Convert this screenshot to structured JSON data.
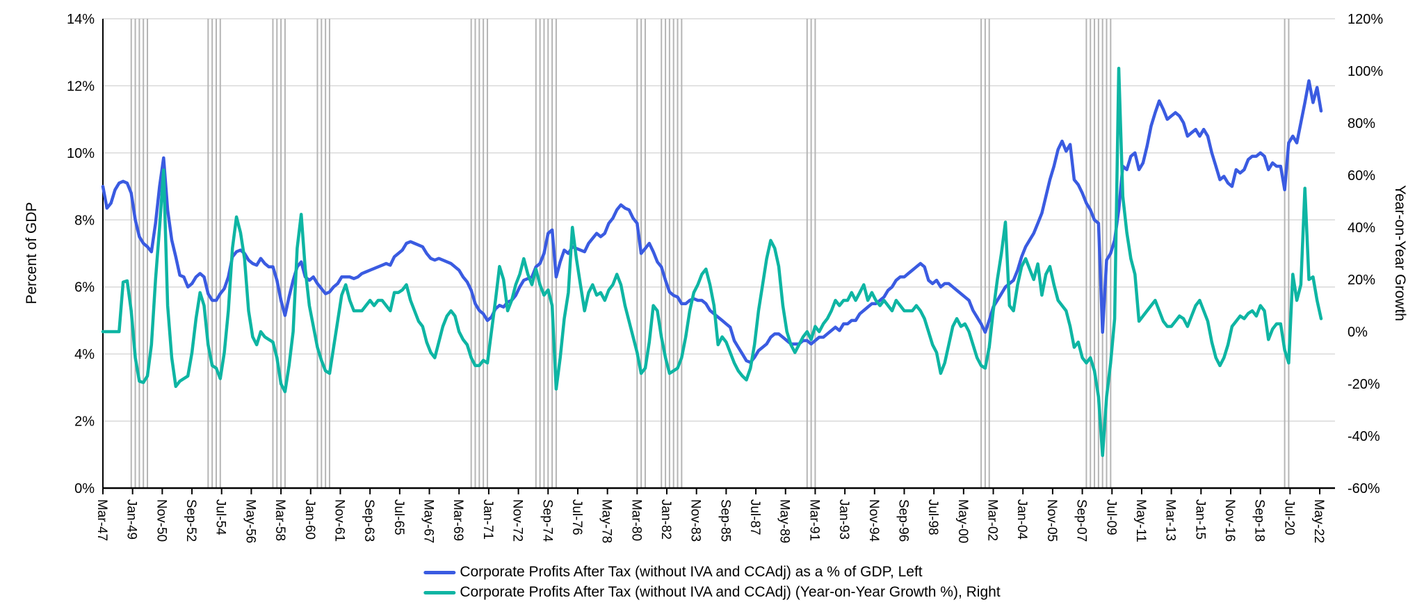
{
  "chart_data": {
    "type": "line",
    "title": "",
    "frequency": "quarterly",
    "start_quarter": "1947Q1",
    "end_quarter": "2022Q2",
    "x_tick_spacing_months": 22,
    "x_tick_labels": [
      "Mar-47",
      "Jan-49",
      "Nov-50",
      "Sep-52",
      "Jul-54",
      "May-56",
      "Mar-58",
      "Jan-60",
      "Nov-61",
      "Sep-63",
      "Jul-65",
      "May-67",
      "Mar-69",
      "Jan-71",
      "Nov-72",
      "Sep-74",
      "Jul-76",
      "May-78",
      "Mar-80",
      "Jan-82",
      "Nov-83",
      "Sep-85",
      "Jul-87",
      "May-89",
      "Mar-91",
      "Jan-93",
      "Nov-94",
      "Sep-96",
      "Jul-98",
      "May-00",
      "Mar-02",
      "Jan-04",
      "Nov-05",
      "Sep-07",
      "Jul-09",
      "May-11",
      "Mar-13",
      "Jan-15",
      "Nov-16",
      "Sep-18",
      "Jul-20",
      "May-22"
    ],
    "left_axis": {
      "label": "Percent of GDP",
      "min": 0,
      "max": 14,
      "step": 2,
      "tick_labels": [
        "0%",
        "2%",
        "4%",
        "6%",
        "8%",
        "10%",
        "12%",
        "14%"
      ]
    },
    "right_axis": {
      "label": "Year-on-Year Growth",
      "min": -60,
      "max": 120,
      "step": 20,
      "tick_labels": [
        "-60%",
        "-40%",
        "-20%",
        "0%",
        "20%",
        "40%",
        "60%",
        "80%",
        "100%",
        "120%"
      ]
    },
    "grid": "horizontal",
    "legend_position": "bottom",
    "recession_bars": {
      "color": "#b5b5b5",
      "quarter_indices": [
        7,
        8,
        9,
        10,
        11,
        26,
        27,
        28,
        29,
        42,
        43,
        44,
        45,
        53,
        54,
        55,
        56,
        91,
        92,
        93,
        94,
        95,
        107,
        108,
        109,
        110,
        111,
        112,
        132,
        133,
        134,
        138,
        139,
        140,
        141,
        142,
        143,
        174,
        175,
        176,
        217,
        218,
        219,
        243,
        244,
        245,
        246,
        247,
        248,
        249,
        292,
        293
      ]
    },
    "series": [
      {
        "name": "Corporate Profits After Tax (without IVA and CCAdj) as a % of GDP, Left",
        "axis": "left",
        "color": "#3a5be1",
        "values": [
          9.0,
          8.35,
          8.5,
          8.9,
          9.1,
          9.15,
          9.1,
          8.8,
          8.0,
          7.5,
          7.3,
          7.2,
          7.05,
          7.9,
          9.0,
          9.85,
          8.3,
          7.4,
          6.9,
          6.35,
          6.3,
          6.0,
          6.1,
          6.3,
          6.4,
          6.3,
          5.8,
          5.6,
          5.6,
          5.8,
          5.95,
          6.3,
          6.9,
          7.05,
          7.1,
          7.0,
          6.8,
          6.7,
          6.65,
          6.85,
          6.7,
          6.6,
          6.6,
          6.2,
          5.6,
          5.15,
          5.7,
          6.2,
          6.6,
          6.75,
          6.3,
          6.2,
          6.3,
          6.1,
          5.95,
          5.8,
          5.85,
          6.0,
          6.1,
          6.3,
          6.3,
          6.3,
          6.25,
          6.3,
          6.4,
          6.45,
          6.5,
          6.55,
          6.6,
          6.65,
          6.7,
          6.65,
          6.9,
          7.0,
          7.1,
          7.3,
          7.35,
          7.3,
          7.25,
          7.2,
          7.0,
          6.85,
          6.8,
          6.85,
          6.8,
          6.75,
          6.7,
          6.6,
          6.5,
          6.3,
          6.15,
          5.9,
          5.5,
          5.3,
          5.2,
          5.0,
          5.1,
          5.35,
          5.45,
          5.4,
          5.55,
          5.6,
          5.75,
          6.0,
          6.2,
          6.25,
          6.3,
          6.6,
          6.7,
          7.0,
          7.6,
          7.7,
          6.3,
          6.75,
          7.1,
          7.0,
          7.2,
          7.15,
          7.1,
          7.05,
          7.3,
          7.45,
          7.6,
          7.5,
          7.6,
          7.9,
          8.05,
          8.3,
          8.45,
          8.35,
          8.3,
          8.05,
          7.9,
          7.0,
          7.15,
          7.3,
          7.05,
          6.75,
          6.6,
          6.2,
          5.85,
          5.75,
          5.7,
          5.5,
          5.5,
          5.6,
          5.65,
          5.6,
          5.6,
          5.5,
          5.3,
          5.2,
          5.1,
          5.0,
          4.9,
          4.8,
          4.4,
          4.2,
          4.0,
          3.8,
          3.75,
          3.9,
          4.1,
          4.2,
          4.3,
          4.5,
          4.6,
          4.6,
          4.5,
          4.4,
          4.3,
          4.3,
          4.3,
          4.4,
          4.4,
          4.3,
          4.4,
          4.5,
          4.5,
          4.6,
          4.7,
          4.8,
          4.7,
          4.9,
          4.9,
          5.0,
          5.0,
          5.2,
          5.3,
          5.4,
          5.5,
          5.5,
          5.6,
          5.7,
          5.9,
          6.0,
          6.2,
          6.3,
          6.3,
          6.4,
          6.5,
          6.6,
          6.7,
          6.6,
          6.2,
          6.1,
          6.2,
          6.0,
          6.1,
          6.1,
          6.0,
          5.9,
          5.8,
          5.7,
          5.6,
          5.3,
          5.1,
          4.9,
          4.65,
          5.0,
          5.4,
          5.6,
          5.8,
          6.0,
          6.1,
          6.2,
          6.5,
          6.9,
          7.2,
          7.4,
          7.6,
          7.9,
          8.2,
          8.7,
          9.2,
          9.6,
          10.1,
          10.35,
          10.05,
          10.25,
          9.2,
          9.05,
          8.8,
          8.5,
          8.3,
          8.0,
          7.9,
          4.65,
          6.8,
          7.0,
          7.4,
          8.3,
          9.6,
          9.5,
          9.9,
          10.0,
          9.5,
          9.7,
          10.2,
          10.8,
          11.2,
          11.55,
          11.3,
          11.0,
          11.1,
          11.2,
          11.1,
          10.9,
          10.5,
          10.6,
          10.7,
          10.5,
          10.7,
          10.5,
          10.0,
          9.6,
          9.2,
          9.3,
          9.1,
          9.0,
          9.5,
          9.4,
          9.5,
          9.8,
          9.9,
          9.9,
          10.0,
          9.9,
          9.5,
          9.7,
          9.6,
          9.6,
          8.9,
          10.3,
          10.5,
          10.3,
          10.9,
          11.5,
          12.15,
          11.5,
          11.95,
          11.25
        ]
      },
      {
        "name": "Corporate Profits After Tax (without IVA and CCAdj) (Year-on-Year Growth %), Right",
        "axis": "right",
        "color": "#0eb5a3",
        "values": [
          0,
          0,
          0,
          0,
          0,
          19,
          19.5,
          8,
          -10,
          -19,
          -19.5,
          -17,
          -5,
          20,
          40,
          62,
          10,
          -10,
          -21,
          -19,
          -18,
          -17,
          -8,
          5,
          15,
          10,
          -5,
          -13,
          -14,
          -18,
          -8,
          8,
          32,
          44,
          38,
          28,
          8,
          -2,
          -5,
          0,
          -2,
          -3,
          -4,
          -10,
          -20,
          -23,
          -13,
          0,
          32,
          45,
          24,
          10,
          2,
          -6,
          -11,
          -15,
          -16,
          -6,
          4,
          14,
          18,
          12,
          8,
          8,
          8,
          10,
          12,
          10,
          12,
          12,
          10,
          8,
          15,
          15,
          16,
          18,
          12,
          8,
          4,
          2,
          -4,
          -8,
          -10,
          -4,
          2,
          6,
          8,
          6,
          0,
          -3,
          -5,
          -10,
          -13,
          -13,
          -11,
          -12,
          0,
          12,
          25,
          20,
          8,
          12,
          18,
          22,
          28,
          22,
          18,
          24,
          18,
          14,
          16,
          10,
          -22,
          -10,
          5,
          15,
          40,
          28,
          18,
          8,
          15,
          18,
          14,
          15,
          12,
          16,
          18,
          22,
          18,
          10,
          4,
          -2,
          -8,
          -16,
          -14,
          -4,
          10,
          8,
          -2,
          -10,
          -16,
          -15,
          -14,
          -10,
          -2,
          8,
          15,
          18,
          22,
          24,
          18,
          10,
          -5,
          -2,
          -4,
          -8,
          -12,
          -15,
          -17,
          -18.5,
          -14,
          -5,
          8,
          18,
          28,
          35,
          32,
          25,
          10,
          0,
          -5,
          -8,
          -5,
          -2,
          0,
          -3,
          2,
          0,
          3,
          5,
          8,
          12,
          10,
          12,
          12,
          15,
          12,
          15,
          18,
          12,
          15,
          12,
          10,
          12,
          10,
          8,
          12,
          10,
          8,
          8,
          8,
          10,
          8,
          5,
          0,
          -5,
          -8,
          -16,
          -12,
          -5,
          2,
          5,
          2,
          3,
          0,
          -5,
          -10,
          -13,
          -14,
          -6,
          8,
          20,
          30,
          42,
          10,
          8,
          18,
          25,
          28,
          24,
          20,
          26,
          14,
          22,
          25,
          18,
          12,
          10,
          8,
          2,
          -6,
          -4,
          -10,
          -12,
          -10,
          -15,
          -25,
          -47.5,
          -25,
          -12,
          5,
          101,
          52,
          38,
          28,
          22,
          4,
          6,
          8,
          10,
          12,
          8,
          4,
          2,
          2,
          4,
          6,
          5,
          2,
          6,
          10,
          12,
          8,
          4,
          -4,
          -10,
          -13,
          -10,
          -5,
          2,
          4,
          6,
          5,
          7,
          8,
          6,
          10,
          8,
          -3,
          1,
          3,
          3,
          -7,
          -12,
          22,
          12,
          18,
          55,
          20,
          21,
          12,
          5
        ]
      }
    ]
  },
  "colors": {
    "background": "#ffffff",
    "axis": "#000000",
    "grid": "#d9d9d9",
    "text": "#000000"
  }
}
